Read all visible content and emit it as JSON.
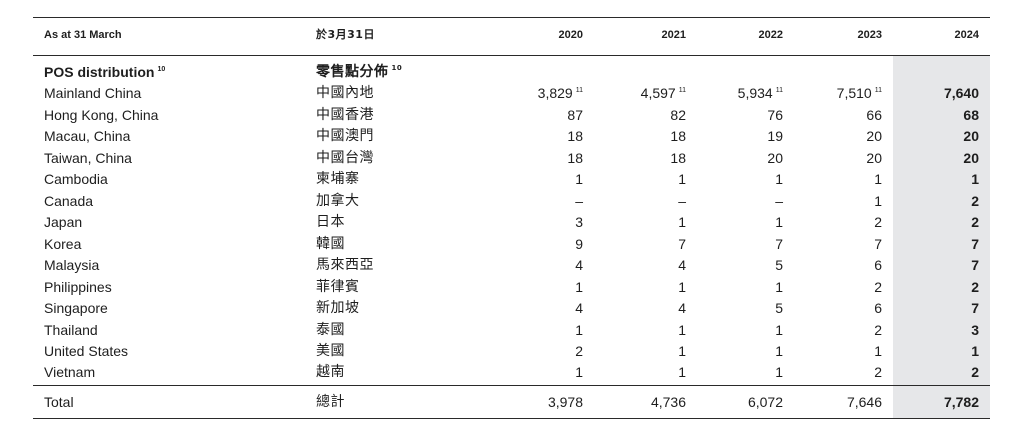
{
  "header": {
    "en": "As at 31 March",
    "zh": "於3月31日",
    "years": [
      "2020",
      "2021",
      "2022",
      "2023",
      "2024"
    ]
  },
  "section": {
    "en": "POS distribution",
    "zh": "零售點分佈",
    "footnote": "10"
  },
  "rows": [
    {
      "en": "Mainland China",
      "zh": "中國內地",
      "v": [
        "3,829",
        "4,597",
        "5,934",
        "7,510",
        "7,640"
      ],
      "fn": [
        "11",
        "11",
        "11",
        "11",
        ""
      ]
    },
    {
      "en": "Hong Kong, China",
      "zh": "中國香港",
      "v": [
        "87",
        "82",
        "76",
        "66",
        "68"
      ],
      "fn": [
        "",
        "",
        "",
        "",
        ""
      ]
    },
    {
      "en": "Macau, China",
      "zh": "中國澳門",
      "v": [
        "18",
        "18",
        "19",
        "20",
        "20"
      ],
      "fn": [
        "",
        "",
        "",
        "",
        ""
      ]
    },
    {
      "en": "Taiwan, China",
      "zh": "中國台灣",
      "v": [
        "18",
        "18",
        "20",
        "20",
        "20"
      ],
      "fn": [
        "",
        "",
        "",
        "",
        ""
      ]
    },
    {
      "en": "Cambodia",
      "zh": "柬埔寨",
      "v": [
        "1",
        "1",
        "1",
        "1",
        "1"
      ],
      "fn": [
        "",
        "",
        "",
        "",
        ""
      ]
    },
    {
      "en": "Canada",
      "zh": "加拿大",
      "v": [
        "–",
        "–",
        "–",
        "1",
        "2"
      ],
      "fn": [
        "",
        "",
        "",
        "",
        ""
      ]
    },
    {
      "en": "Japan",
      "zh": "日本",
      "v": [
        "3",
        "1",
        "1",
        "2",
        "2"
      ],
      "fn": [
        "",
        "",
        "",
        "",
        ""
      ]
    },
    {
      "en": "Korea",
      "zh": "韓國",
      "v": [
        "9",
        "7",
        "7",
        "7",
        "7"
      ],
      "fn": [
        "",
        "",
        "",
        "",
        ""
      ]
    },
    {
      "en": "Malaysia",
      "zh": "馬來西亞",
      "v": [
        "4",
        "4",
        "5",
        "6",
        "7"
      ],
      "fn": [
        "",
        "",
        "",
        "",
        ""
      ]
    },
    {
      "en": "Philippines",
      "zh": "菲律賓",
      "v": [
        "1",
        "1",
        "1",
        "2",
        "2"
      ],
      "fn": [
        "",
        "",
        "",
        "",
        ""
      ]
    },
    {
      "en": "Singapore",
      "zh": "新加坡",
      "v": [
        "4",
        "4",
        "5",
        "6",
        "7"
      ],
      "fn": [
        "",
        "",
        "",
        "",
        ""
      ]
    },
    {
      "en": "Thailand",
      "zh": "泰國",
      "v": [
        "1",
        "1",
        "1",
        "2",
        "3"
      ],
      "fn": [
        "",
        "",
        "",
        "",
        ""
      ]
    },
    {
      "en": "United States",
      "zh": "美國",
      "v": [
        "2",
        "1",
        "1",
        "1",
        "1"
      ],
      "fn": [
        "",
        "",
        "",
        "",
        ""
      ]
    },
    {
      "en": "Vietnam",
      "zh": "越南",
      "v": [
        "1",
        "1",
        "1",
        "2",
        "2"
      ],
      "fn": [
        "",
        "",
        "",
        "",
        ""
      ]
    }
  ],
  "total": {
    "en": "Total",
    "zh": "總計",
    "v": [
      "3,978",
      "4,736",
      "6,072",
      "7,646",
      "7,782"
    ]
  },
  "colors": {
    "highlight_column": "#e6e7e9",
    "rule": "#2a2a2a",
    "text": "#1e1e1e"
  }
}
